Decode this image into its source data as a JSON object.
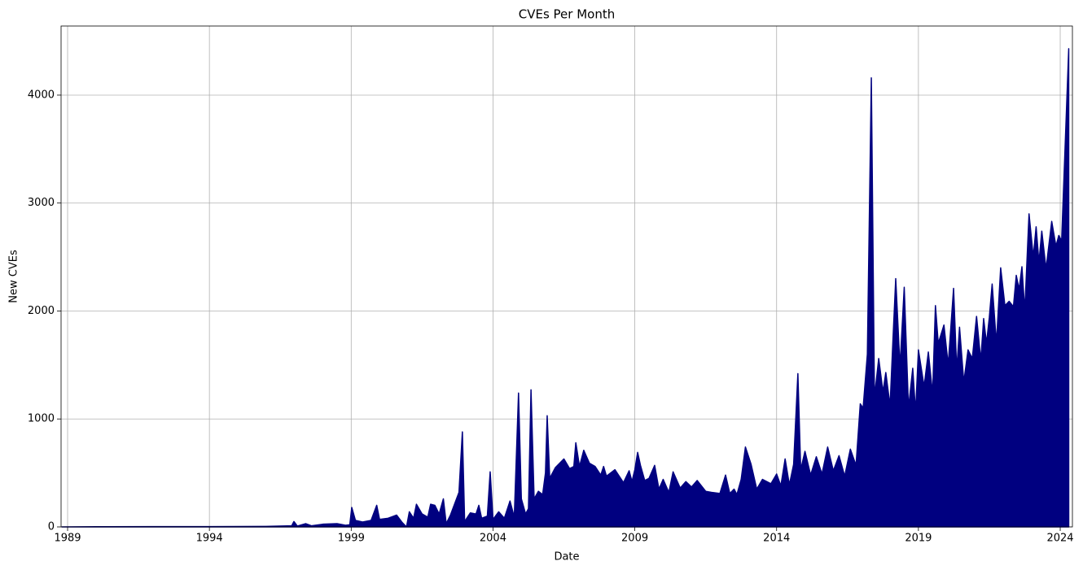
{
  "chart_data": {
    "type": "area",
    "title": "CVEs Per Month",
    "xlabel": "Date",
    "ylabel": "New CVEs",
    "color": "#000080",
    "grid": true,
    "xlim": [
      1988.77,
      2024.43
    ],
    "ylim": [
      0,
      4640
    ],
    "xticks": [
      1989,
      1994,
      1999,
      2004,
      2009,
      2014,
      2019,
      2024
    ],
    "yticks": [
      0,
      1000,
      2000,
      3000,
      4000
    ],
    "x": [
      1988.8,
      1990,
      1992,
      1994,
      1996,
      1996.9,
      1996.98,
      1997.1,
      1997.4,
      1997.6,
      1998,
      1998.5,
      1998.8,
      1998.95,
      1999.02,
      1999.15,
      1999.4,
      1999.7,
      1999.9,
      2000.0,
      2000.3,
      2000.6,
      2000.8,
      2000.95,
      2001.05,
      2001.2,
      2001.3,
      2001.5,
      2001.7,
      2001.8,
      2001.95,
      2002.1,
      2002.25,
      2002.35,
      2002.5,
      2002.7,
      2002.8,
      2002.92,
      2003.0,
      2003.2,
      2003.4,
      2003.5,
      2003.6,
      2003.8,
      2003.9,
      2004.0,
      2004.2,
      2004.4,
      2004.6,
      2004.75,
      2004.9,
      2005.0,
      2005.15,
      2005.25,
      2005.34,
      2005.45,
      2005.6,
      2005.75,
      2005.85,
      2005.91,
      2006.0,
      2006.2,
      2006.5,
      2006.7,
      2006.85,
      2006.92,
      2007.05,
      2007.2,
      2007.4,
      2007.6,
      2007.8,
      2007.9,
      2008.0,
      2008.3,
      2008.6,
      2008.8,
      2008.9,
      2009.0,
      2009.1,
      2009.2,
      2009.35,
      2009.5,
      2009.7,
      2009.85,
      2010.0,
      2010.2,
      2010.35,
      2010.6,
      2010.8,
      2011.0,
      2011.2,
      2011.5,
      2011.7,
      2012.0,
      2012.2,
      2012.35,
      2012.5,
      2012.6,
      2012.75,
      2012.9,
      2013.1,
      2013.3,
      2013.5,
      2013.8,
      2014.0,
      2014.15,
      2014.3,
      2014.45,
      2014.6,
      2014.75,
      2014.85,
      2015.0,
      2015.2,
      2015.4,
      2015.6,
      2015.8,
      2016.0,
      2016.2,
      2016.4,
      2016.6,
      2016.8,
      2016.95,
      2017.05,
      2017.2,
      2017.34,
      2017.45,
      2017.6,
      2017.75,
      2017.85,
      2018.0,
      2018.1,
      2018.2,
      2018.35,
      2018.5,
      2018.65,
      2018.8,
      2018.9,
      2019.0,
      2019.2,
      2019.35,
      2019.5,
      2019.6,
      2019.7,
      2019.9,
      2020.05,
      2020.24,
      2020.35,
      2020.45,
      2020.6,
      2020.75,
      2020.9,
      2021.05,
      2021.2,
      2021.3,
      2021.4,
      2021.5,
      2021.6,
      2021.75,
      2021.9,
      2022.05,
      2022.2,
      2022.35,
      2022.45,
      2022.55,
      2022.65,
      2022.75,
      2022.9,
      2023.05,
      2023.15,
      2023.25,
      2023.35,
      2023.5,
      2023.7,
      2023.85,
      2023.95,
      2024.05,
      2024.3
    ],
    "values": [
      0,
      2,
      3,
      3,
      5,
      10,
      50,
      8,
      30,
      10,
      25,
      30,
      15,
      20,
      180,
      60,
      45,
      60,
      200,
      70,
      80,
      110,
      40,
      0,
      140,
      80,
      210,
      120,
      90,
      210,
      200,
      120,
      260,
      30,
      110,
      250,
      320,
      880,
      50,
      130,
      120,
      200,
      80,
      100,
      510,
      70,
      140,
      80,
      240,
      90,
      1240,
      260,
      120,
      170,
      1270,
      260,
      330,
      300,
      500,
      1030,
      450,
      550,
      630,
      540,
      560,
      780,
      560,
      710,
      590,
      560,
      480,
      560,
      470,
      530,
      410,
      520,
      420,
      530,
      690,
      570,
      430,
      450,
      570,
      350,
      440,
      320,
      510,
      360,
      420,
      370,
      430,
      330,
      320,
      310,
      480,
      310,
      350,
      300,
      440,
      740,
      580,
      350,
      440,
      400,
      490,
      380,
      630,
      390,
      580,
      1420,
      530,
      700,
      480,
      650,
      490,
      740,
      520,
      660,
      470,
      720,
      570,
      1140,
      1100,
      1600,
      4160,
      1200,
      1560,
      1250,
      1430,
      1120,
      1720,
      2300,
      1480,
      2220,
      1100,
      1470,
      1060,
      1640,
      1300,
      1620,
      1230,
      2050,
      1700,
      1870,
      1500,
      2210,
      1450,
      1850,
      1340,
      1640,
      1560,
      1950,
      1540,
      1930,
      1700,
      1940,
      2250,
      1700,
      2400,
      2050,
      2090,
      2040,
      2330,
      2200,
      2410,
      2000,
      2900,
      2500,
      2780,
      2450,
      2740,
      2390,
      2830,
      2600,
      2700,
      2650,
      4430
    ]
  }
}
